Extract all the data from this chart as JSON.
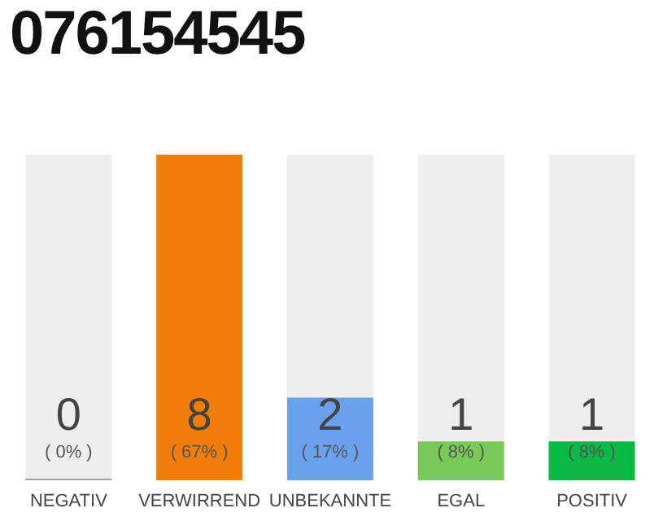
{
  "chart_data": {
    "type": "bar",
    "title": "076154545",
    "categories": [
      "NEGATIV",
      "VERWIRREND",
      "UNBEKANNTE",
      "EGAL",
      "POSITIV"
    ],
    "values": [
      0,
      67,
      17,
      8,
      8
    ],
    "colors": [
      "#a0a0a0",
      "#f07d0a",
      "#6aa1ed",
      "#78c85a",
      "#0aba45"
    ],
    "value_labels": [
      "( 0% )",
      "( 67% )",
      "( 17% )",
      "( 8% )",
      "( 8% )"
    ],
    "annotations": [
      "0",
      "8",
      "2",
      "1",
      "1"
    ]
  }
}
